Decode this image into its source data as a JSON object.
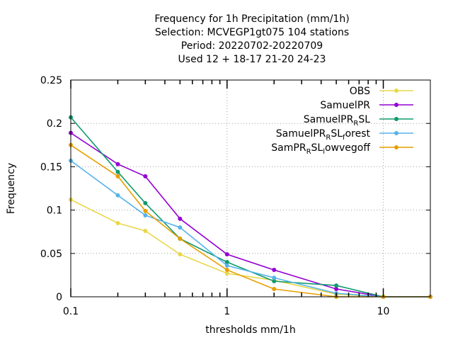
{
  "chart_data": {
    "type": "line",
    "title_lines": [
      "Frequency  for 1h Precipitation (mm/1h)",
      "Selection: MCVEGP1gt075    104 stations",
      "Period: 20220702-20220709",
      "Used  12 + 18-17 21-20 24-23"
    ],
    "xlabel": "thresholds mm/1h",
    "ylabel": "Frequency",
    "x_scale": "log",
    "xlim": [
      0.1,
      20
    ],
    "ylim": [
      0,
      0.25
    ],
    "x_tick_values": [
      0.1,
      1,
      10
    ],
    "x_tick_labels": [
      "0.1",
      "1",
      "10"
    ],
    "y_tick_values": [
      0,
      0.05,
      0.1,
      0.15,
      0.2,
      0.25
    ],
    "y_tick_labels": [
      "0",
      "0.05",
      "0.1",
      "0.15",
      "0.2",
      "0.25"
    ],
    "grid": true,
    "legend_position": "top-right",
    "x": [
      0.1,
      0.2,
      0.3,
      0.5,
      1,
      2,
      5,
      10,
      20
    ],
    "series": [
      {
        "name": "OBS",
        "color": "#e8d84a",
        "marker": "circle",
        "values": [
          0.112,
          0.085,
          0.076,
          0.049,
          0.027,
          0.019,
          0.003,
          0.0,
          0.0
        ]
      },
      {
        "name": "SamuelPR",
        "color": "#9400d3",
        "marker": "circle",
        "values": [
          0.189,
          0.153,
          0.139,
          0.09,
          0.049,
          0.031,
          0.009,
          0.0,
          0.0
        ]
      },
      {
        "name": "SamuelPR",
        "name_sub": "R",
        "name_tail": "SL",
        "color": "#119a6e",
        "marker": "circle",
        "values": [
          0.207,
          0.144,
          0.108,
          0.067,
          0.04,
          0.018,
          0.013,
          0.0,
          0.0
        ]
      },
      {
        "name": "SamuelPR",
        "name_sub": "R",
        "name_tail": "SL",
        "name_sub2": "f",
        "name_tail2": "orest",
        "color": "#56b4e9",
        "marker": "circle",
        "values": [
          0.157,
          0.117,
          0.094,
          0.08,
          0.036,
          0.022,
          0.004,
          0.0,
          0.0
        ]
      },
      {
        "name": "SamPR",
        "name_sub": "R",
        "name_tail": "SL",
        "name_sub2": "l",
        "name_tail2": "owvegoff",
        "color": "#e69f00",
        "marker": "circle",
        "values": [
          0.175,
          0.139,
          0.099,
          0.067,
          0.031,
          0.009,
          0.0,
          0.0,
          0.0
        ]
      }
    ]
  }
}
